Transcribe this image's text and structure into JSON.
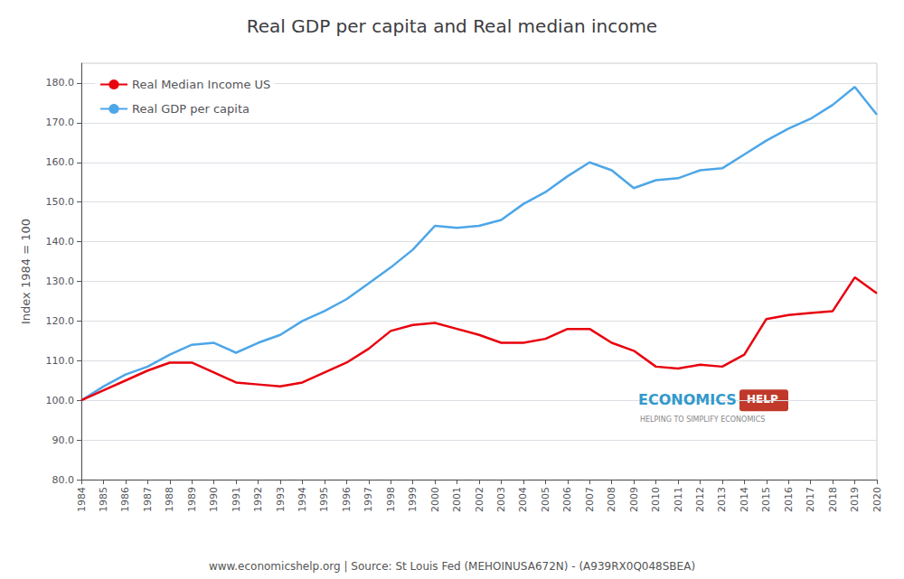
{
  "chart_data": {
    "type": "line",
    "title": "Real GDP per capita and Real median income",
    "ylabel": "Index 1984 = 100",
    "x": [
      1984,
      1985,
      1986,
      1987,
      1988,
      1989,
      1990,
      1991,
      1992,
      1993,
      1994,
      1995,
      1996,
      1997,
      1998,
      1999,
      2000,
      2001,
      2002,
      2003,
      2004,
      2005,
      2006,
      2007,
      2008,
      2009,
      2010,
      2011,
      2012,
      2013,
      2014,
      2015,
      2016,
      2017,
      2018,
      2019,
      2020
    ],
    "xlim": [
      1984,
      2020
    ],
    "xticks": [
      1984,
      1985,
      1986,
      1987,
      1988,
      1989,
      1990,
      1991,
      1992,
      1993,
      1994,
      1995,
      1996,
      1997,
      1998,
      1999,
      2000,
      2001,
      2002,
      2003,
      2004,
      2005,
      2006,
      2007,
      2008,
      2009,
      2010,
      2011,
      2012,
      2013,
      2014,
      2015,
      2016,
      2017,
      2018,
      2019,
      2020
    ],
    "ylim": [
      80.0,
      185.0
    ],
    "yticks": [
      {
        "value": 80,
        "label": "80.0"
      },
      {
        "value": 90,
        "label": "90.0"
      },
      {
        "value": 100,
        "label": "100.0"
      },
      {
        "value": 110,
        "label": "110.0"
      },
      {
        "value": 120,
        "label": "120.0"
      },
      {
        "value": 130,
        "label": "130.0"
      },
      {
        "value": 140,
        "label": "140.0"
      },
      {
        "value": 150,
        "label": "150.0"
      },
      {
        "value": 160,
        "label": "160.0"
      },
      {
        "value": 170,
        "label": "170.0"
      },
      {
        "value": 180,
        "label": "180.0"
      }
    ],
    "grid": true,
    "legend": "upper left",
    "series": [
      {
        "name": "Real GDP per capita",
        "color": "#4da6e8",
        "values": [
          100.0,
          103.5,
          106.5,
          108.5,
          111.5,
          114.0,
          114.5,
          112.0,
          114.5,
          116.5,
          120.0,
          122.5,
          125.5,
          129.5,
          133.5,
          138.0,
          144.0,
          143.5,
          144.0,
          145.5,
          149.5,
          152.5,
          156.5,
          160.0,
          158.0,
          153.5,
          155.5,
          156.0,
          158.0,
          158.5,
          162.0,
          165.5,
          168.5,
          171.0,
          174.5,
          179.0,
          172.0
        ]
      },
      {
        "name": "Real Median Income US",
        "color": "#e8000d",
        "values": [
          100.0,
          102.5,
          105.0,
          107.5,
          109.5,
          109.5,
          107.0,
          104.5,
          104.0,
          103.5,
          104.5,
          107.0,
          109.5,
          113.0,
          117.5,
          119.0,
          119.5,
          118.0,
          116.5,
          114.5,
          114.5,
          115.5,
          118.0,
          118.0,
          114.5,
          112.5,
          108.5,
          108.0,
          109.0,
          108.5,
          111.5,
          120.5,
          121.5,
          122.0,
          122.5,
          131.0,
          127.0
        ]
      }
    ],
    "annotations": [
      {
        "text": "ECONOMICS",
        "color": "#3399cc"
      },
      {
        "text": "HELP",
        "color": "#c0392b"
      },
      {
        "text": "HELPING TO SIMPLIFY ECONOMICS"
      },
      {
        "text": "www.economicshelp.org | Source: St Louis Fed (MEHOINUSA672N) - (A939RX0Q048SBEA)"
      }
    ]
  }
}
